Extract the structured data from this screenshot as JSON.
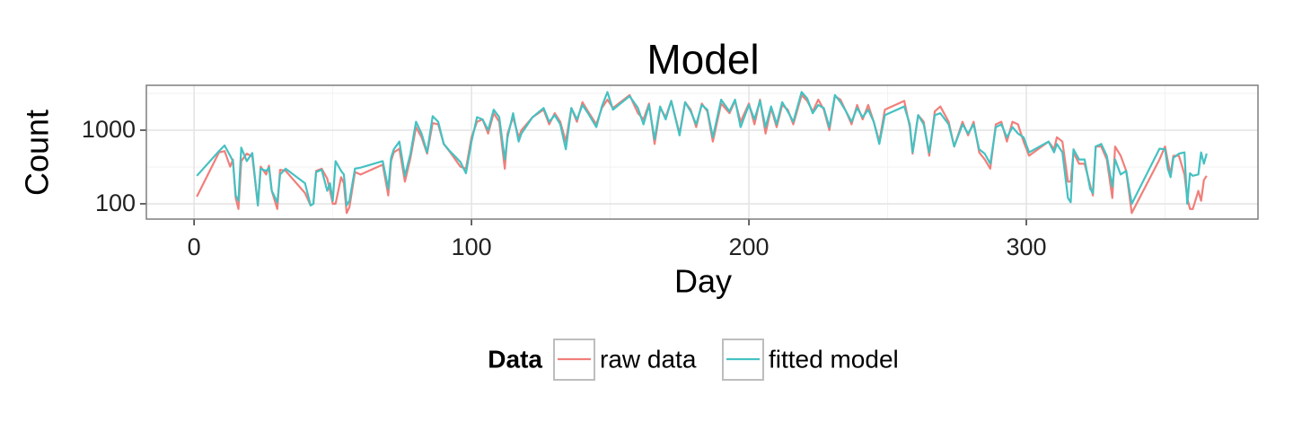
{
  "chart_data": {
    "type": "line",
    "title": "Model",
    "x_label": "Day",
    "y_label": "Count",
    "legend_title": "Data",
    "legend_position": "bottom",
    "log_y": true,
    "grid": true,
    "x": [
      1,
      9,
      11,
      13,
      14,
      15,
      16,
      17,
      19,
      21,
      23,
      24,
      26,
      27,
      28,
      30,
      31,
      33,
      40,
      42,
      43,
      44,
      46,
      48,
      49,
      50,
      51,
      53,
      54,
      55,
      56,
      58,
      60,
      68,
      70,
      71,
      72,
      74,
      76,
      78,
      80,
      82,
      84,
      86,
      88,
      90,
      92,
      96,
      98,
      100,
      102,
      104,
      106,
      108,
      110,
      112,
      113,
      115,
      117,
      118,
      122,
      126,
      128,
      130,
      132,
      134,
      136,
      138,
      140,
      142,
      145,
      147,
      149,
      151,
      157,
      160,
      162,
      164,
      166,
      168,
      170,
      172,
      175,
      177,
      179,
      181,
      183,
      185,
      187,
      190,
      193,
      195,
      197,
      200,
      202,
      204,
      206,
      208,
      210,
      212,
      214,
      216,
      219,
      221,
      223,
      225,
      227,
      229,
      231,
      233,
      235,
      237,
      239,
      241,
      243,
      245,
      247,
      249,
      256,
      258,
      259,
      261,
      263,
      265,
      267,
      269,
      272,
      274,
      277,
      279,
      281,
      283,
      285,
      287,
      289,
      291,
      293,
      295,
      297,
      299,
      301,
      308,
      310,
      311,
      313,
      315,
      316,
      317,
      319,
      321,
      323,
      324,
      325,
      327,
      329,
      331,
      332,
      334,
      336,
      338,
      348,
      350,
      351,
      352,
      353,
      355,
      357,
      358,
      359,
      360,
      362,
      363,
      364,
      365
    ],
    "series": [
      {
        "name": "raw data",
        "color": "#f07f7a",
        "values": [
          125,
          500,
          520,
          320,
          400,
          120,
          85,
          380,
          480,
          440,
          95,
          320,
          250,
          330,
          150,
          85,
          290,
          280,
          140,
          95,
          100,
          280,
          300,
          220,
          150,
          100,
          100,
          230,
          190,
          75,
          90,
          270,
          250,
          340,
          130,
          380,
          500,
          560,
          200,
          420,
          1100,
          800,
          480,
          1250,
          1200,
          650,
          520,
          320,
          300,
          800,
          1300,
          1400,
          900,
          1700,
          1300,
          300,
          900,
          1500,
          800,
          1000,
          1500,
          1900,
          1200,
          1700,
          1300,
          700,
          2000,
          1300,
          2400,
          1800,
          1200,
          2000,
          2600,
          2000,
          3000,
          1700,
          1400,
          2300,
          650,
          2000,
          1500,
          2500,
          900,
          2400,
          1900,
          1100,
          2300,
          1800,
          700,
          2300,
          1700,
          2500,
          1300,
          2300,
          1200,
          2600,
          900,
          2000,
          1100,
          2200,
          1900,
          1200,
          3000,
          2500,
          1800,
          2600,
          1900,
          1000,
          2900,
          2600,
          1800,
          1200,
          2200,
          1400,
          2200,
          1300,
          700,
          1900,
          2500,
          1100,
          480,
          1600,
          1300,
          450,
          1800,
          2100,
          1300,
          600,
          1300,
          850,
          1300,
          500,
          400,
          300,
          1200,
          1300,
          700,
          1300,
          1200,
          700,
          450,
          700,
          550,
          800,
          700,
          200,
          200,
          500,
          350,
          350,
          180,
          130,
          600,
          600,
          400,
          120,
          600,
          450,
          280,
          75,
          400,
          600,
          380,
          250,
          450,
          450,
          250,
          120,
          85,
          85,
          150,
          110,
          210,
          240
        ]
      },
      {
        "name": "fitted model",
        "color": "#45c1c2",
        "values": [
          240,
          520,
          620,
          450,
          380,
          130,
          110,
          580,
          380,
          490,
          95,
          300,
          280,
          310,
          150,
          105,
          250,
          300,
          190,
          95,
          100,
          270,
          290,
          150,
          190,
          110,
          380,
          280,
          250,
          95,
          110,
          300,
          310,
          380,
          160,
          420,
          550,
          700,
          240,
          480,
          1300,
          900,
          500,
          1550,
          1300,
          650,
          530,
          370,
          260,
          700,
          1500,
          1400,
          1000,
          1900,
          1500,
          400,
          800,
          1700,
          700,
          900,
          1500,
          2000,
          1300,
          1600,
          1200,
          550,
          2000,
          1400,
          2200,
          1700,
          1100,
          2100,
          3300,
          1900,
          2900,
          2000,
          1200,
          2200,
          750,
          2100,
          1400,
          2500,
          850,
          2400,
          1800,
          1200,
          2200,
          1900,
          800,
          2600,
          1800,
          2600,
          1100,
          2200,
          1400,
          2500,
          1100,
          2100,
          1200,
          2400,
          1800,
          1300,
          3300,
          2700,
          1700,
          2200,
          2000,
          1100,
          3000,
          2400,
          1800,
          1300,
          2000,
          1500,
          1900,
          1300,
          650,
          1600,
          2100,
          1200,
          500,
          1600,
          1200,
          500,
          1600,
          1700,
          1200,
          600,
          1200,
          900,
          1200,
          550,
          480,
          350,
          1100,
          1200,
          800,
          1100,
          900,
          800,
          500,
          700,
          500,
          650,
          500,
          120,
          105,
          550,
          400,
          400,
          160,
          140,
          600,
          650,
          450,
          170,
          400,
          250,
          280,
          100,
          560,
          550,
          300,
          230,
          420,
          480,
          500,
          100,
          260,
          240,
          250,
          500,
          350,
          480
        ]
      }
    ],
    "xlim": [
      -17.2,
      383.5
    ],
    "xticks": [
      0,
      100,
      200,
      300
    ],
    "ylim": [
      62,
      4070
    ],
    "yticks": [
      100,
      1000
    ]
  }
}
